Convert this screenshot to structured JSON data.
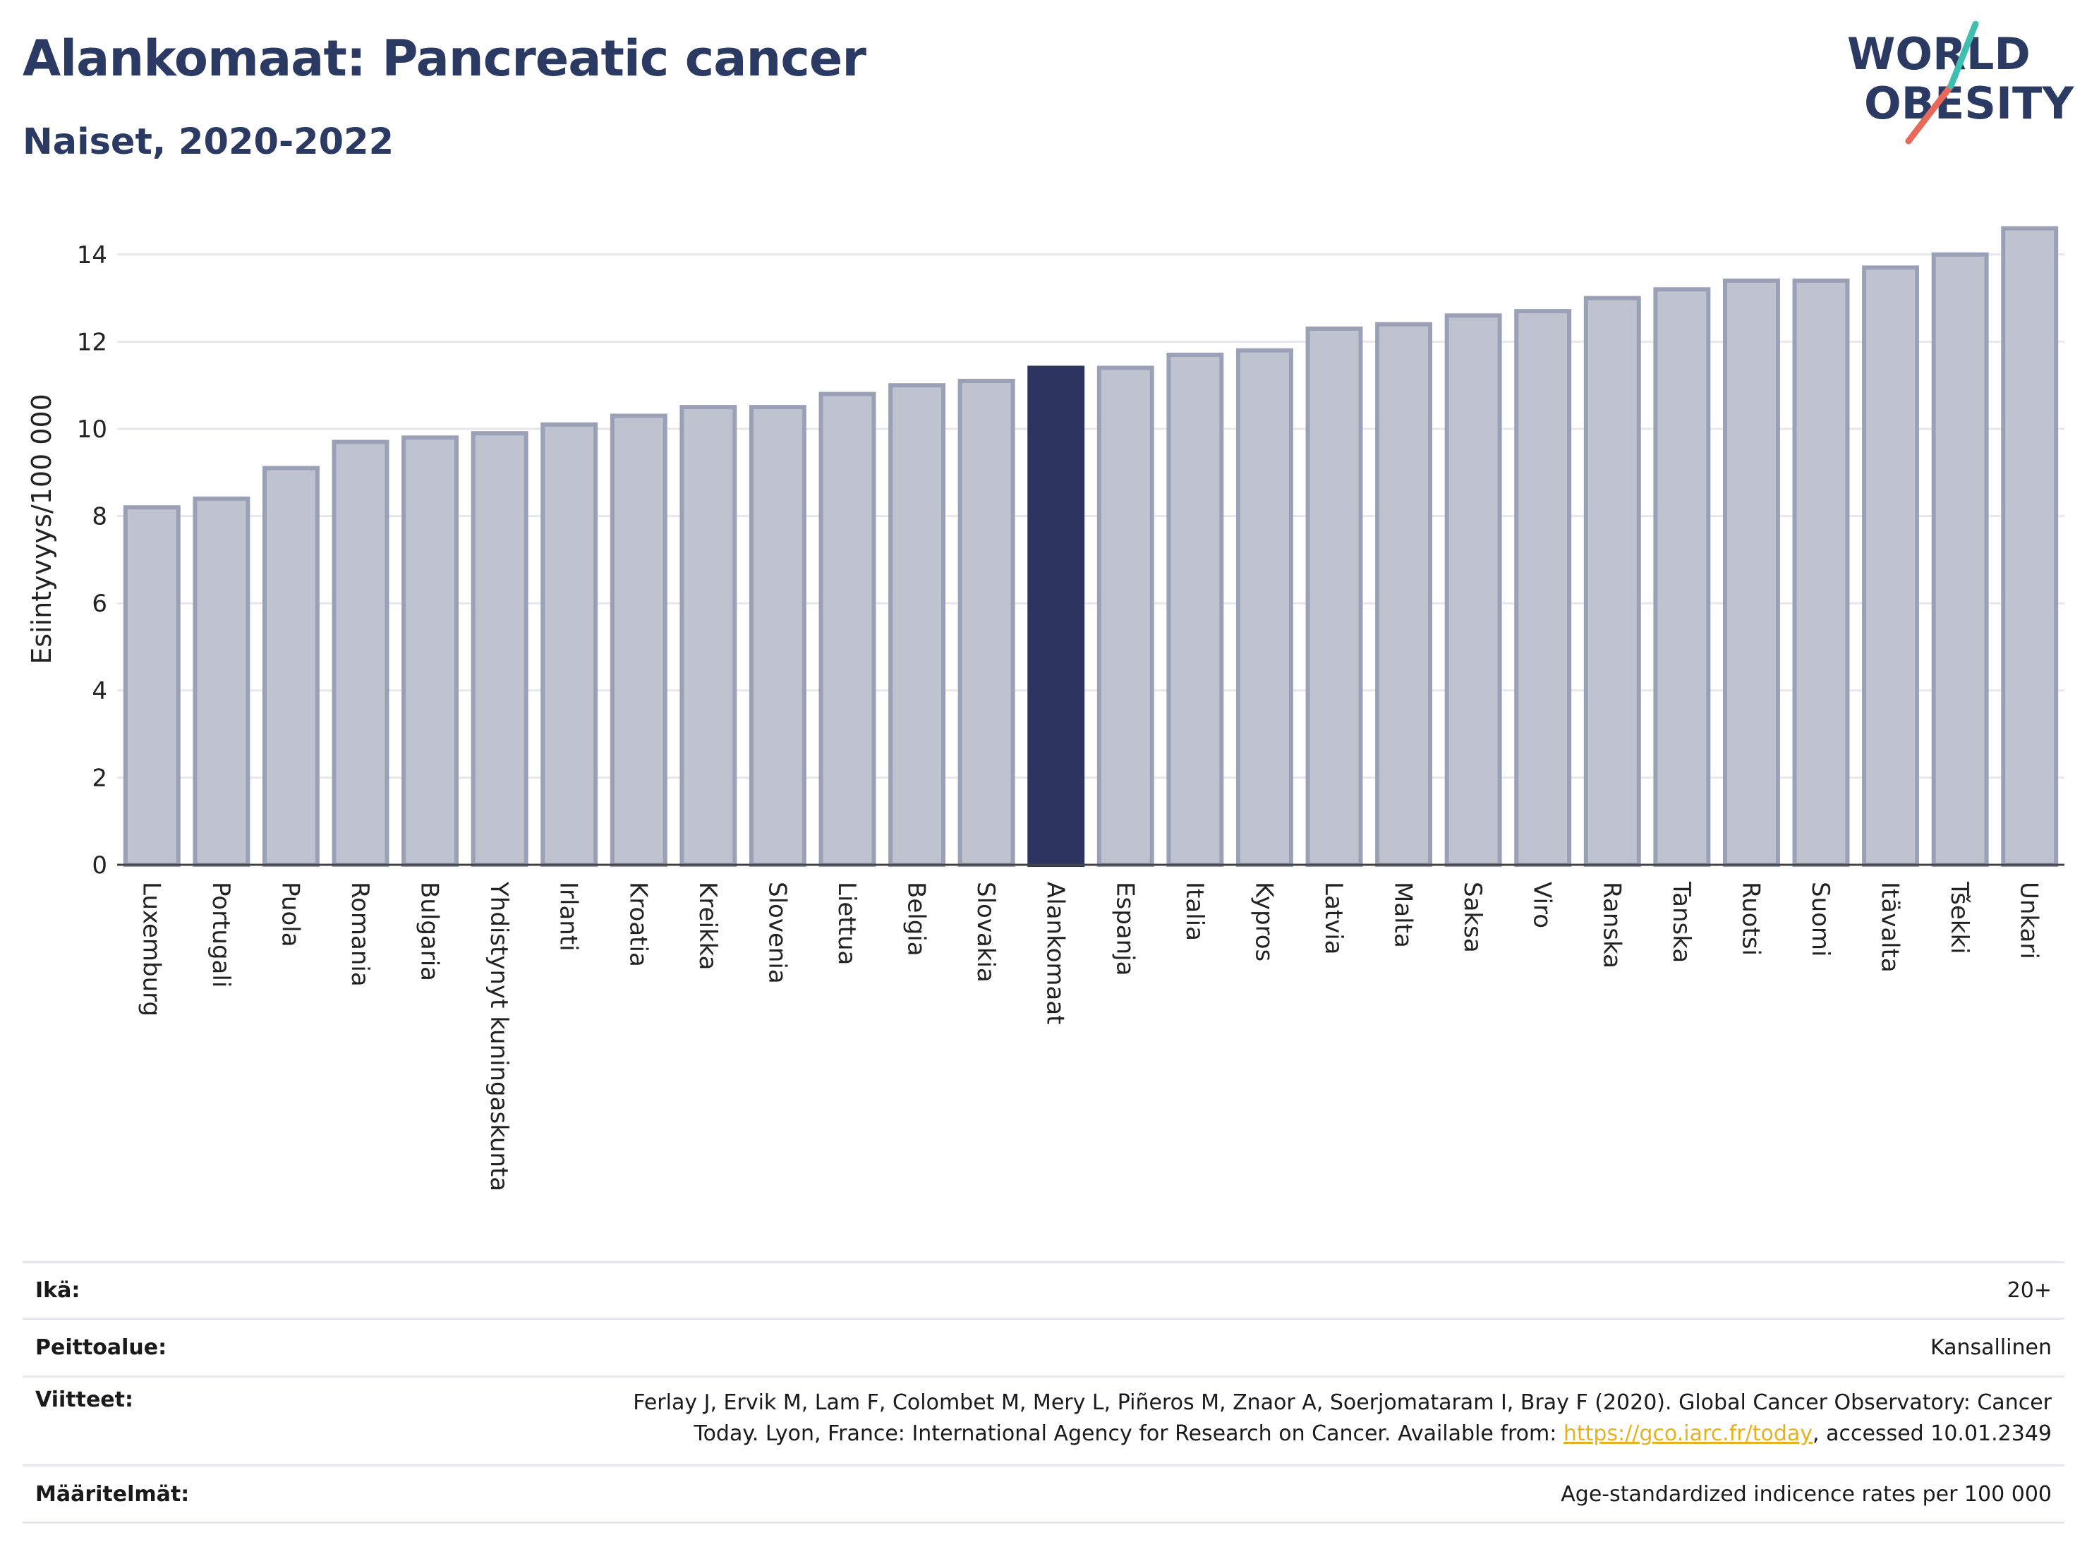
{
  "header": {
    "title": "Alankomaat: Pancreatic cancer",
    "subtitle": "Naiset, 2020-2022"
  },
  "logo": {
    "line1": "WORLD",
    "line2": "OBESITY"
  },
  "chart_data": {
    "type": "bar",
    "ylabel": "Esiintyvyys/100 000",
    "ylim": [
      0,
      15
    ],
    "yticks": [
      0,
      2,
      4,
      6,
      8,
      10,
      12,
      14
    ],
    "grid": true,
    "highlight": "Alankomaat",
    "colors": {
      "bar": "#bfc3d0",
      "bar_edge": "#9aa0b6",
      "highlight": "#2b3560",
      "grid": "#e6e8ee"
    },
    "categories": [
      "Luxemburg",
      "Portugali",
      "Puola",
      "Romania",
      "Bulgaria",
      "Yhdistynyt kuningaskunta",
      "Irlanti",
      "Kroatia",
      "Kreikka",
      "Slovenia",
      "Liettua",
      "Belgia",
      "Slovakia",
      "Alankomaat",
      "Espanja",
      "Italia",
      "Kypros",
      "Latvia",
      "Malta",
      "Saksa",
      "Viro",
      "Ranska",
      "Tanska",
      "Ruotsi",
      "Suomi",
      "Itävalta",
      "Tšekki",
      "Unkari"
    ],
    "values": [
      8.2,
      8.4,
      9.1,
      9.7,
      9.8,
      9.9,
      10.1,
      10.3,
      10.5,
      10.5,
      10.8,
      11.0,
      11.1,
      11.4,
      11.4,
      11.7,
      11.8,
      12.3,
      12.4,
      12.6,
      12.7,
      13.0,
      13.2,
      13.4,
      13.4,
      13.7,
      14.0,
      14.6
    ]
  },
  "footer": {
    "rows": [
      {
        "label": "Ikä:",
        "value": "20+"
      },
      {
        "label": "Peittoalue:",
        "value": "Kansallinen"
      },
      {
        "label": "Viitteet:",
        "value_line1": "Ferlay J, Ervik M, Lam F, Colombet M, Mery L, Piñeros M, Znaor A, Soerjomataram I, Bray F (2020). Global Cancer Observatory: Cancer",
        "value_line2_pre": "Today. Lyon, France: International Agency for Research on Cancer. Available from: ",
        "link": "https://gco.iarc.fr/today",
        "value_line2_post": ", accessed 10.01.2349"
      },
      {
        "label": "Määritelmät:",
        "value": "Age-standardized indicence rates per 100 000"
      }
    ]
  }
}
